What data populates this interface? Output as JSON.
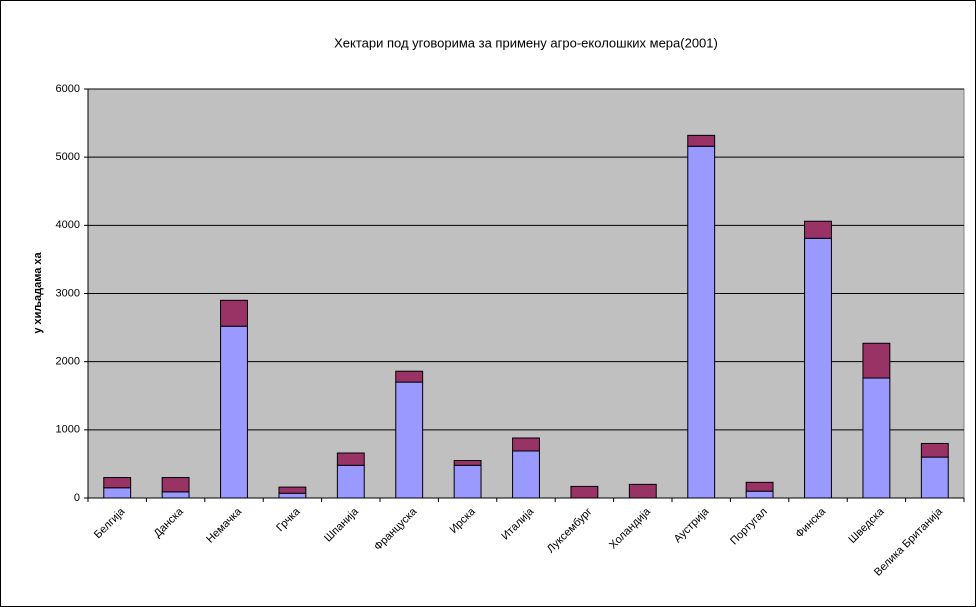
{
  "chart_data": {
    "type": "stacked_bar",
    "title": "Хектари под уговорима за примену агро-еколошких мера(2001)",
    "y_label": "у хиљадама ха",
    "categories": [
      "Белгија",
      "Данска",
      "Немачка",
      "Грчка",
      "Шпанија",
      "Француска",
      "Ирска",
      "Италија",
      "Луксембург",
      "Холандија",
      "Аустрија",
      "Португал",
      "Финска",
      "Шведска",
      "Велика Британија"
    ],
    "series": [
      {
        "color": "#9999ff",
        "values": [
          150,
          90,
          2520,
          70,
          480,
          1700,
          480,
          690,
          0,
          0,
          5160,
          100,
          3810,
          1760,
          600
        ]
      },
      {
        "color": "#993366",
        "values": [
          150,
          210,
          380,
          90,
          180,
          160,
          70,
          190,
          170,
          200,
          160,
          130,
          250,
          510,
          200
        ]
      }
    ],
    "ylim": [
      0,
      6000
    ],
    "yticks": [
      0,
      1000,
      2000,
      3000,
      4000,
      5000,
      6000
    ],
    "grid": true,
    "plot_background": "#c0c0c0"
  }
}
